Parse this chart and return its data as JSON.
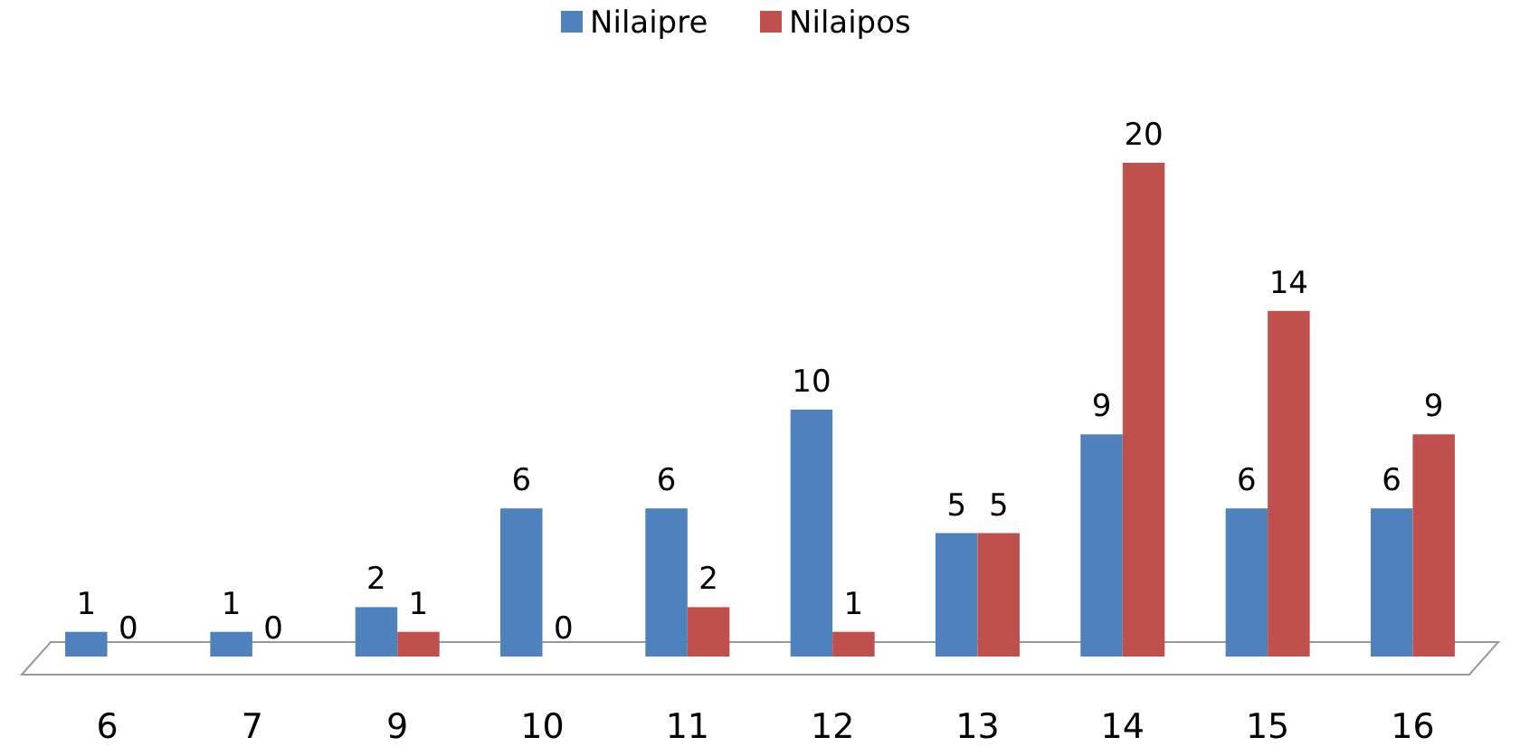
{
  "chart_data": {
    "type": "bar",
    "categories": [
      "6",
      "7",
      "9",
      "10",
      "11",
      "12",
      "13",
      "14",
      "15",
      "16"
    ],
    "series": [
      {
        "name": "Nilaipre",
        "color": "#4f81bd",
        "values": [
          1,
          1,
          2,
          6,
          6,
          10,
          5,
          9,
          6,
          6
        ]
      },
      {
        "name": "Nilaipos",
        "color": "#c0504d",
        "values": [
          0,
          0,
          1,
          0,
          2,
          1,
          5,
          20,
          14,
          9
        ]
      }
    ],
    "data_labels": true,
    "legend": "top",
    "grid": false
  }
}
